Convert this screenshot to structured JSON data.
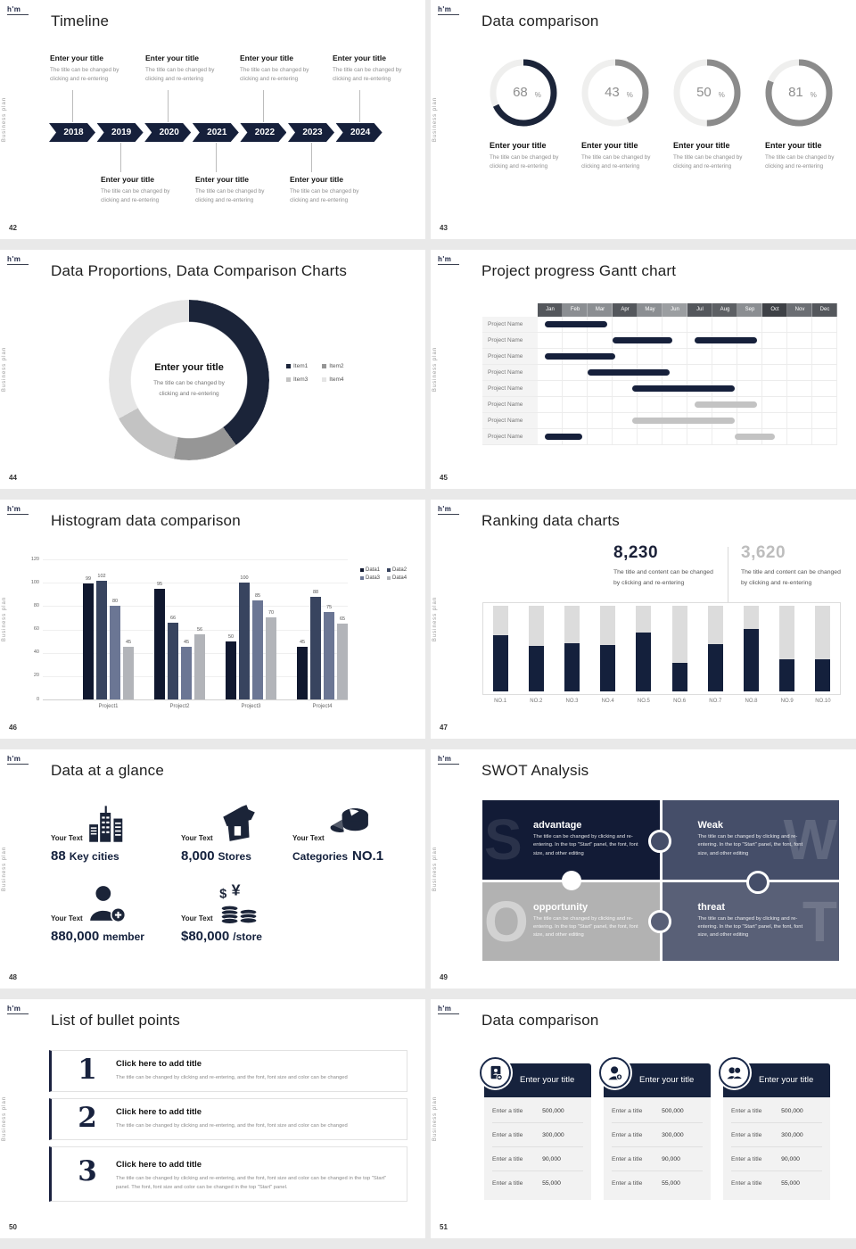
{
  "global": {
    "logo": "h'm",
    "sidebar_text": "Business plan",
    "colors": {
      "navy": "#16203b",
      "slate": "#454e69",
      "gray_arc": "#8b8b8b",
      "page_bg": "#e9e9e9"
    }
  },
  "slides": {
    "timeline": {
      "page": "42",
      "title": "Timeline",
      "years": [
        "2018",
        "2019",
        "2020",
        "2021",
        "2022",
        "2023",
        "2024"
      ],
      "item_title": "Enter your title",
      "item_desc": [
        "The title can be changed by",
        "clicking and re-entering"
      ]
    },
    "rings": {
      "page": "43",
      "title": "Data comparison",
      "item_title": "Enter your title",
      "item_desc": [
        "The title can be changed by",
        "clicking and re-entering"
      ],
      "percent_sign": "%",
      "items": [
        {
          "percent": 68,
          "color": "#1b2439"
        },
        {
          "percent": 43,
          "color": "#8b8b8b"
        },
        {
          "percent": 50,
          "color": "#8b8b8b"
        },
        {
          "percent": 81,
          "color": "#8b8b8b"
        }
      ]
    },
    "donut": {
      "page": "44",
      "title": "Data Proportions, Data Comparison Charts",
      "center_title": "Enter your title",
      "center_desc": [
        "The title can be changed by",
        "clicking and re-entering"
      ],
      "slices": [
        {
          "label": "Item1",
          "value": 40,
          "color": "#1b2439"
        },
        {
          "label": "Item2",
          "value": 13,
          "color": "#969696"
        },
        {
          "label": "Item3",
          "value": 14,
          "color": "#c3c3c3"
        },
        {
          "label": "Item4",
          "value": 33,
          "color": "#e5e5e5"
        }
      ]
    },
    "gantt": {
      "page": "45",
      "title": "Project progress Gantt chart",
      "months": [
        "Jan",
        "Feb",
        "Mar",
        "Apr",
        "May",
        "Jun",
        "Jul",
        "Aug",
        "Sep",
        "Oct",
        "Nov",
        "Dec"
      ],
      "month_colors": [
        "#54575c",
        "#8b8e92",
        "#8b8e92",
        "#54575c",
        "#8b8e92",
        "#9b9ea1",
        "#54575c",
        "#5d6064",
        "#8b8e92",
        "#3e4146",
        "#6b6e73",
        "#54575c"
      ],
      "row_label": "Project Name",
      "rows": [
        {
          "bars": [
            {
              "start": 0.3,
              "end": 2.8,
              "color": "#16203b"
            }
          ]
        },
        {
          "bars": [
            {
              "start": 3.0,
              "end": 5.4,
              "color": "#16203b"
            },
            {
              "start": 6.3,
              "end": 8.8,
              "color": "#16203b"
            }
          ]
        },
        {
          "bars": [
            {
              "start": 0.3,
              "end": 3.1,
              "color": "#16203b"
            }
          ]
        },
        {
          "bars": [
            {
              "start": 2.0,
              "end": 5.3,
              "color": "#16203b"
            }
          ]
        },
        {
          "bars": [
            {
              "start": 3.8,
              "end": 7.9,
              "color": "#16203b"
            }
          ]
        },
        {
          "bars": [
            {
              "start": 6.3,
              "end": 8.8,
              "color": "#c3c3c3"
            }
          ]
        },
        {
          "bars": [
            {
              "start": 3.8,
              "end": 7.9,
              "color": "#c3c3c3"
            }
          ]
        },
        {
          "bars": [
            {
              "start": 0.3,
              "end": 1.8,
              "color": "#16203b"
            },
            {
              "start": 7.9,
              "end": 9.5,
              "color": "#c3c3c3"
            }
          ]
        }
      ]
    },
    "histogram": {
      "page": "46",
      "title": "Histogram data comparison",
      "categories": [
        "Project1",
        "Project2",
        "Project3",
        "Project4"
      ],
      "yticks": [
        0,
        20,
        40,
        60,
        80,
        100,
        120
      ],
      "ymax": 120,
      "series": [
        {
          "name": "Data1",
          "color": "#10182f",
          "values": [
            99,
            95,
            50,
            45
          ]
        },
        {
          "name": "Data2",
          "color": "#38445f",
          "values": [
            102,
            66,
            100,
            88
          ]
        },
        {
          "name": "Data3",
          "color": "#6b7694",
          "values": [
            80,
            45,
            85,
            75
          ]
        },
        {
          "name": "Data4",
          "color": "#b2b4b9",
          "values": [
            45,
            56,
            70,
            65
          ]
        }
      ]
    },
    "ranking": {
      "page": "47",
      "title": "Ranking data charts",
      "stats": [
        {
          "value": "8,230",
          "color": "#1b2138",
          "desc": [
            "The title and content can be changed",
            "by clicking and re-entering"
          ]
        },
        {
          "value": "3,620",
          "color": "#bdbdbd",
          "desc": [
            "The title and content can be changed",
            "by clicking and re-entering"
          ]
        }
      ],
      "categories": [
        "NO.1",
        "NO.2",
        "NO.3",
        "NO.4",
        "NO.5",
        "NO.6",
        "NO.7",
        "NO.8",
        "NO.9",
        "NO.10"
      ],
      "values_pct": [
        66,
        53,
        56,
        54,
        69,
        33,
        55,
        73,
        37,
        38
      ],
      "bar_color": "#14203c",
      "track_color": "#dcdcdc"
    },
    "glance": {
      "page": "48",
      "title": "Data at a glance",
      "label": "Your Text",
      "items": [
        {
          "icon": "buildings-icon",
          "value": "88",
          "unit": "Key cities"
        },
        {
          "icon": "store-icon",
          "value": "8,000",
          "unit": "Stores"
        },
        {
          "icon": "pie-icon",
          "value": "Categories",
          "unit": "NO.1"
        },
        {
          "icon": "member-add-icon",
          "value": "880,000",
          "unit": "member"
        },
        {
          "icon": "coins-icon",
          "value": "$80,000",
          "unit": "/store"
        }
      ]
    },
    "swot": {
      "page": "49",
      "title": "SWOT Analysis",
      "body": "The title can be changed by clicking and re-entering. In the top \"Start\" panel, the font, font size, and other editing",
      "quadrants": [
        {
          "letter": "S",
          "title": "advantage",
          "color": "#121b36"
        },
        {
          "letter": "W",
          "title": "Weak",
          "color": "#454e69"
        },
        {
          "letter": "O",
          "title": "opportunity",
          "color": "#b2b2b2"
        },
        {
          "letter": "T",
          "title": "threat",
          "color": "#596077"
        }
      ]
    },
    "bullets": {
      "page": "50",
      "title": "List of bullet points",
      "item_title": "Click here to add title",
      "items": [
        {
          "num": "1",
          "desc": "The title can be changed by clicking and re-entering, and the font, font size and color can be changed"
        },
        {
          "num": "2",
          "desc": "The title can be changed by clicking and re-entering, and the font, font size and color can be changed"
        },
        {
          "num": "3",
          "desc": "The title can be changed by clicking and re-entering, and the font, font size and color can be changed in the top \"Start\" panel. The font, font size and color can be changed in the top \"Start\" panel."
        }
      ]
    },
    "cards": {
      "page": "51",
      "title": "Data comparison",
      "card_title": "Enter your title",
      "row_label": "Enter a title",
      "values": [
        "500,000",
        "300,000",
        "90,000",
        "55,000"
      ],
      "icons": [
        "id-card-add-icon",
        "person-add-icon",
        "people-icon"
      ]
    }
  },
  "chart_data": [
    {
      "type": "pie",
      "title": "Data Proportions, Data Comparison Charts",
      "categories": [
        "Item1",
        "Item2",
        "Item3",
        "Item4"
      ],
      "values": [
        40,
        13,
        14,
        33
      ],
      "legend_position": "right"
    },
    {
      "type": "bar",
      "title": "Histogram data comparison",
      "categories": [
        "Project1",
        "Project2",
        "Project3",
        "Project4"
      ],
      "series": [
        {
          "name": "Data1",
          "values": [
            99,
            95,
            50,
            45
          ]
        },
        {
          "name": "Data2",
          "values": [
            102,
            66,
            100,
            88
          ]
        },
        {
          "name": "Data3",
          "values": [
            80,
            45,
            85,
            75
          ]
        },
        {
          "name": "Data4",
          "values": [
            45,
            56,
            70,
            65
          ]
        }
      ],
      "ylim": [
        0,
        120
      ],
      "grid": true,
      "legend_position": "top-right"
    },
    {
      "type": "bar",
      "title": "Ranking data charts",
      "categories": [
        "NO.1",
        "NO.2",
        "NO.3",
        "NO.4",
        "NO.5",
        "NO.6",
        "NO.7",
        "NO.8",
        "NO.9",
        "NO.10"
      ],
      "values": [
        66,
        53,
        56,
        54,
        69,
        33,
        55,
        73,
        37,
        38
      ],
      "ylim": [
        0,
        100
      ]
    },
    {
      "type": "bar",
      "title": "Data comparison rings (percent complete)",
      "categories": [
        "ring1",
        "ring2",
        "ring3",
        "ring4"
      ],
      "values": [
        68,
        43,
        50,
        81
      ]
    }
  ]
}
